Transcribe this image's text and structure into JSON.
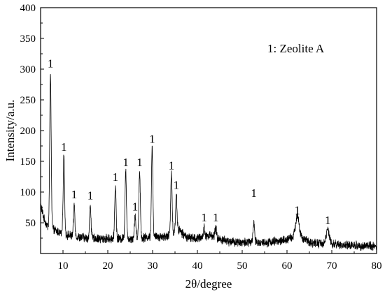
{
  "chart_data": {
    "type": "line",
    "title": "",
    "xlabel": "2θ/degree",
    "ylabel": "Intensity/a.u.",
    "xlim": [
      5,
      80
    ],
    "ylim": [
      0,
      400
    ],
    "x_ticks": [
      10,
      20,
      30,
      40,
      50,
      60,
      70,
      80
    ],
    "y_ticks": [
      50,
      100,
      150,
      200,
      250,
      300,
      350,
      400
    ],
    "grid": false,
    "legend": {
      "text": "1: Zeolite A",
      "placement": "top-right"
    },
    "series": [
      {
        "baseline": [
          [
            5,
            80
          ],
          [
            5.8,
            55
          ],
          [
            6.5,
            45
          ],
          [
            8,
            38
          ],
          [
            10,
            32
          ],
          [
            12,
            28
          ],
          [
            14,
            26
          ],
          [
            18,
            24
          ],
          [
            22,
            24
          ],
          [
            26,
            25
          ],
          [
            30,
            27
          ],
          [
            33,
            28
          ],
          [
            34,
            30
          ],
          [
            35,
            35
          ],
          [
            36,
            38
          ],
          [
            37,
            30
          ],
          [
            38,
            26
          ],
          [
            40,
            24
          ],
          [
            41.5,
            28
          ],
          [
            43,
            30
          ],
          [
            44.5,
            24
          ],
          [
            47,
            20
          ],
          [
            50,
            18
          ],
          [
            55,
            18
          ],
          [
            58,
            20
          ],
          [
            60,
            22
          ],
          [
            61.5,
            28
          ],
          [
            62.5,
            32
          ],
          [
            63.5,
            24
          ],
          [
            65,
            18
          ],
          [
            70,
            15
          ],
          [
            75,
            13
          ],
          [
            80,
            12
          ]
        ],
        "peaks": [
          [
            7.2,
            295
          ],
          [
            10.2,
            160
          ],
          [
            12.5,
            80
          ],
          [
            16.1,
            78
          ],
          [
            21.7,
            110
          ],
          [
            24.0,
            135
          ],
          [
            26.1,
            62
          ],
          [
            27.1,
            135
          ],
          [
            29.9,
            170
          ],
          [
            34.2,
            130
          ],
          [
            35.3,
            95
          ],
          [
            41.5,
            42
          ],
          [
            44.1,
            42
          ],
          [
            52.6,
            50
          ],
          [
            62.3,
            63
          ],
          [
            69.1,
            38
          ]
        ],
        "noise_amplitude": 6
      }
    ],
    "annotations": [
      {
        "text": "1",
        "x": 7.2,
        "y": 303
      },
      {
        "text": "1",
        "x": 10.2,
        "y": 167
      },
      {
        "text": "1",
        "x": 12.5,
        "y": 90
      },
      {
        "text": "1",
        "x": 16.1,
        "y": 88
      },
      {
        "text": "1",
        "x": 21.7,
        "y": 118
      },
      {
        "text": "1",
        "x": 24.0,
        "y": 142
      },
      {
        "text": "1",
        "x": 26.1,
        "y": 70
      },
      {
        "text": "1",
        "x": 27.1,
        "y": 142
      },
      {
        "text": "1",
        "x": 29.9,
        "y": 180
      },
      {
        "text": "1",
        "x": 34.2,
        "y": 137
      },
      {
        "text": "1",
        "x": 35.3,
        "y": 105
      },
      {
        "text": "1",
        "x": 41.5,
        "y": 52
      },
      {
        "text": "1",
        "x": 44.1,
        "y": 52
      },
      {
        "text": "1",
        "x": 52.6,
        "y": 92
      },
      {
        "text": "1",
        "x": 62.3,
        "y": 64
      },
      {
        "text": "1",
        "x": 69.1,
        "y": 48
      }
    ]
  }
}
